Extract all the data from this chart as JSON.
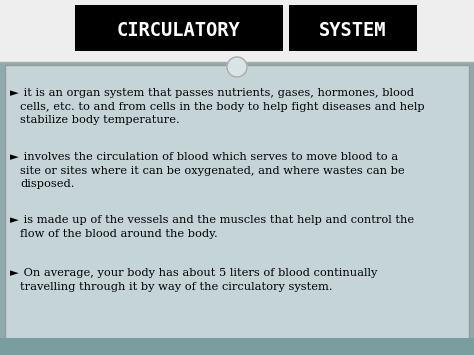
{
  "title1": "CIRCULATORY",
  "title2": "SYSTEM",
  "bg_color": "#8faaac",
  "text_box_bg": "#c5d5d7",
  "title_box_color": "#000000",
  "title_text_color": "#ffffff",
  "title_fontsize": 13.5,
  "body_fontsize": 8.2,
  "bullet": "►",
  "paragraphs": [
    " it is an organ system that passes nutrients, gases, hormones, blood\ncells, etc. to and from cells in the body to help fight diseases and help\nstabilize body temperature.",
    " involves the circulation of blood which serves to move blood to a\nsite or sites where it can be oxygenated, and where wastes can be\ndisposed.",
    " is made up of the vessels and the muscles that help and control the\nflow of the blood around the body.",
    " On average, your body has about 5 liters of blood continually\ntravelling through it by way of the circulatory system."
  ]
}
